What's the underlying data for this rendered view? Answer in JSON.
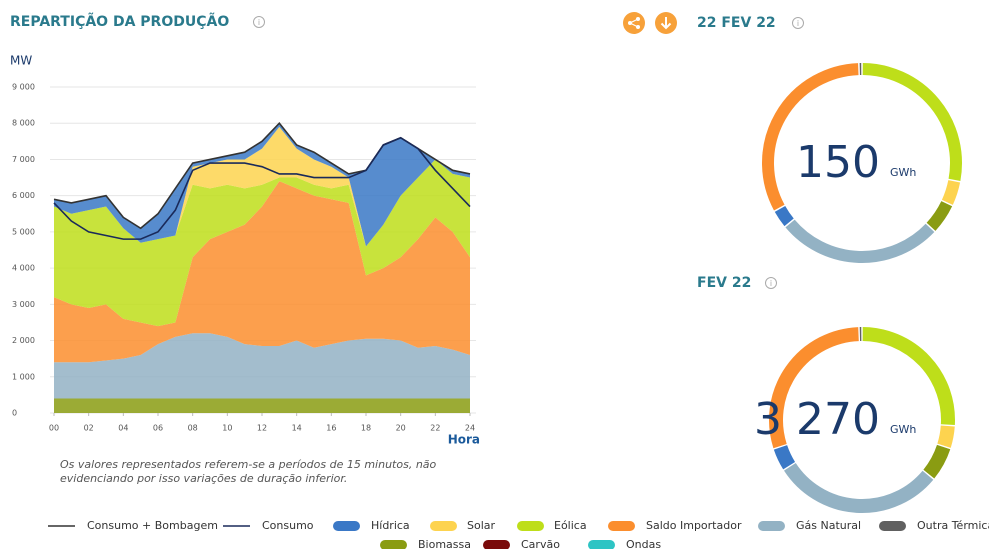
{
  "chart_data": [
    {
      "type": "area",
      "title": "REPARTIÇÃO DA PRODUÇÃO",
      "y_label": "MW",
      "x_label": "Hora",
      "note": [
        "Os valores representados referem-se a períodos de 15 minutos, não",
        "evidenciando por isso variações de duração inferior."
      ],
      "x": [
        0,
        1,
        2,
        3,
        4,
        5,
        6,
        7,
        8,
        9,
        10,
        11,
        12,
        13,
        14,
        15,
        16,
        17,
        18,
        19,
        20,
        21,
        22,
        23,
        24
      ],
      "xlim": [
        0,
        24
      ],
      "xticks": [
        {
          "value": 0,
          "label": "00"
        },
        {
          "value": 2,
          "label": "02"
        },
        {
          "value": 4,
          "label": "04"
        },
        {
          "value": 6,
          "label": "06"
        },
        {
          "value": 8,
          "label": "08"
        },
        10,
        12,
        14,
        16,
        18,
        20,
        22,
        24
      ],
      "ylim": [
        0,
        9000
      ],
      "yticks": [
        0,
        {
          "value": 1000,
          "label": "1 000"
        },
        {
          "value": 2000,
          "label": "2 000"
        },
        {
          "value": 3000,
          "label": "3 000"
        },
        {
          "value": 4000,
          "label": "4 000"
        },
        {
          "value": 5000,
          "label": "5 000"
        },
        {
          "value": 6000,
          "label": "6 000"
        },
        {
          "value": 7000,
          "label": "7 000"
        },
        {
          "value": 8000,
          "label": "8 000"
        },
        {
          "value": 9000,
          "label": "9 000"
        }
      ],
      "grid": true,
      "series": [
        {
          "name": "Consumo + Bombagem",
          "type": "line",
          "color": "#333333",
          "values": [
            5900,
            5800,
            5900,
            6000,
            5400,
            5100,
            5500,
            6200,
            6900,
            7000,
            7100,
            7200,
            7500,
            8000,
            7400,
            7200,
            6900,
            6600,
            6700,
            7400,
            7600,
            7300,
            7000,
            6700,
            6600
          ]
        },
        {
          "name": "Consumo",
          "type": "line",
          "color": "#1a2a5a",
          "values": [
            5800,
            5300,
            5000,
            4900,
            4800,
            4800,
            5000,
            5600,
            6700,
            6900,
            6900,
            6900,
            6800,
            6600,
            6600,
            6500,
            6500,
            6500,
            6700,
            7400,
            7600,
            7300,
            6700,
            6200,
            5700
          ]
        },
        {
          "name": "Hídrica",
          "type": "area",
          "color": "#3a78c6",
          "values": [
            200,
            300,
            300,
            300,
            300,
            400,
            700,
            1300,
            100,
            100,
            100,
            200,
            200,
            100,
            100,
            200,
            100,
            100,
            2100,
            2200,
            1600,
            800,
            0,
            100,
            100
          ]
        },
        {
          "name": "Solar",
          "type": "area",
          "color": "#fdd34f",
          "values": [
            0,
            0,
            0,
            0,
            0,
            0,
            0,
            0,
            500,
            700,
            700,
            800,
            1000,
            1400,
            800,
            700,
            600,
            200,
            0,
            0,
            0,
            0,
            0,
            0,
            0
          ]
        },
        {
          "name": "Eólica",
          "type": "area",
          "color": "#bede1a",
          "values": [
            2500,
            2500,
            2700,
            2700,
            2500,
            2200,
            2400,
            2400,
            2000,
            1400,
            1300,
            1000,
            600,
            100,
            300,
            300,
            300,
            500,
            800,
            1200,
            1700,
            1700,
            1600,
            1600,
            2200
          ]
        },
        {
          "name": "Saldo Importador",
          "type": "area",
          "color": "#fb8e2e",
          "values": [
            1800,
            1600,
            1500,
            1550,
            1100,
            900,
            500,
            400,
            2100,
            2600,
            2900,
            3300,
            3850,
            4550,
            4200,
            4200,
            4000,
            3800,
            1750,
            1950,
            2300,
            3000,
            3550,
            3250,
            2700
          ]
        },
        {
          "name": "Gás Natural",
          "type": "area",
          "color": "#93b2c4",
          "values": [
            1000,
            1000,
            1000,
            1050,
            1100,
            1200,
            1500,
            1700,
            1800,
            1800,
            1700,
            1500,
            1450,
            1450,
            1600,
            1400,
            1500,
            1600,
            1650,
            1650,
            1600,
            1400,
            1450,
            1350,
            1200
          ]
        },
        {
          "name": "Outra Térmica",
          "type": "area",
          "color": "#606060",
          "values": [
            0,
            0,
            0,
            0,
            0,
            0,
            0,
            0,
            0,
            0,
            0,
            0,
            0,
            0,
            0,
            0,
            0,
            0,
            0,
            0,
            0,
            0,
            0,
            0,
            0
          ]
        },
        {
          "name": "Biomassa",
          "type": "area",
          "color": "#8a9c12",
          "values": [
            400,
            400,
            400,
            400,
            400,
            400,
            400,
            400,
            400,
            400,
            400,
            400,
            400,
            400,
            400,
            400,
            400,
            400,
            400,
            400,
            400,
            400,
            400,
            400,
            400
          ]
        },
        {
          "name": "Carvão",
          "type": "area",
          "color": "#7a0a0a",
          "values": [
            0,
            0,
            0,
            0,
            0,
            0,
            0,
            0,
            0,
            0,
            0,
            0,
            0,
            0,
            0,
            0,
            0,
            0,
            0,
            0,
            0,
            0,
            0,
            0,
            0
          ]
        },
        {
          "name": "Ondas",
          "type": "area",
          "color": "#2ec4c4",
          "values": [
            0,
            0,
            0,
            0,
            0,
            0,
            0,
            0,
            0,
            0,
            0,
            0,
            0,
            0,
            0,
            0,
            0,
            0,
            0,
            0,
            0,
            0,
            0,
            0,
            0
          ]
        }
      ]
    },
    {
      "type": "donut",
      "title": "22 FEV 22",
      "total": 150,
      "unit": "GWh",
      "values": [
        42,
        6,
        7.5,
        40.5,
        4.5,
        48.75,
        0.75
      ],
      "colors": [
        "#bede1a",
        "#fdd34f",
        "#8a9c12",
        "#93b2c4",
        "#3a78c6",
        "#fb8e2e",
        "#606060"
      ]
    },
    {
      "type": "donut",
      "title": "FEV 22",
      "total": {
        "value": 3270,
        "label": "3 270"
      },
      "unit": "GWh",
      "values": [
        850,
        130,
        196,
        981,
        131,
        965,
        17
      ],
      "colors": [
        "#bede1a",
        "#fdd34f",
        "#8a9c12",
        "#93b2c4",
        "#3a78c6",
        "#fb8e2e",
        "#606060"
      ]
    }
  ]
}
